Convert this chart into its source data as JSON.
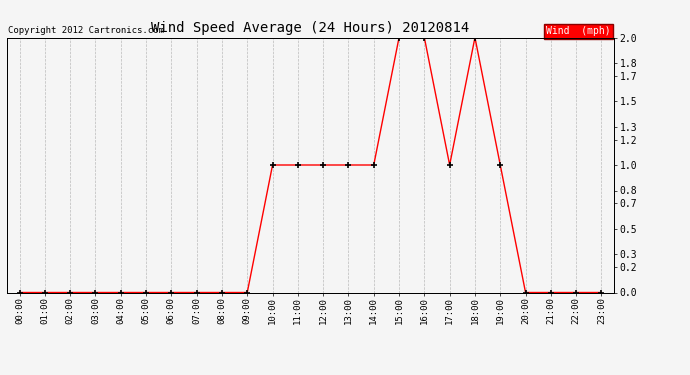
{
  "title": "Wind Speed Average (24 Hours) 20120814",
  "copyright_text": "Copyright 2012 Cartronics.com",
  "legend_label": "Wind  (mph)",
  "line_color": "#ff0000",
  "marker_color": "#000000",
  "bg_color": "#f5f5f5",
  "grid_color": "#bbbbbb",
  "ylim": [
    0.0,
    2.0
  ],
  "yticks": [
    0.0,
    0.2,
    0.3,
    0.5,
    0.7,
    0.8,
    1.0,
    1.2,
    1.3,
    1.5,
    1.7,
    1.8,
    2.0
  ],
  "hours": [
    0,
    1,
    2,
    3,
    4,
    5,
    6,
    7,
    8,
    9,
    10,
    11,
    12,
    13,
    14,
    15,
    16,
    17,
    18,
    19,
    20,
    21,
    22,
    23
  ],
  "values": [
    0.0,
    0.0,
    0.0,
    0.0,
    0.0,
    0.0,
    0.0,
    0.0,
    0.0,
    0.0,
    1.0,
    1.0,
    1.0,
    1.0,
    1.0,
    2.0,
    2.0,
    1.0,
    2.0,
    1.0,
    0.0,
    0.0,
    0.0,
    0.0
  ]
}
